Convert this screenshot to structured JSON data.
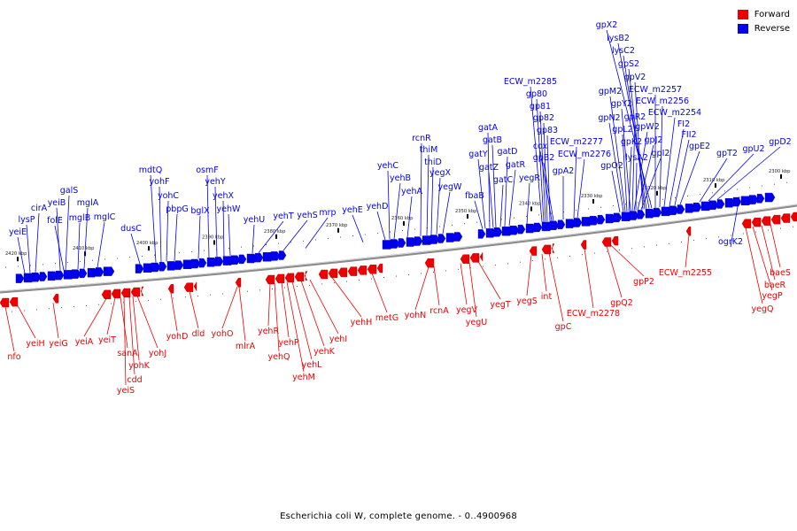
{
  "colors": {
    "forward": "#ee0000",
    "reverse": "#0000ee",
    "backbone": "#888888"
  },
  "legend": [
    {
      "label": "Forward",
      "color": "#ee0000"
    },
    {
      "label": "Reverse",
      "color": "#0000ee"
    }
  ],
  "caption": "Escherichia coli W, complete genome. - 0..4900968",
  "axis": {
    "unit": "kbp",
    "ticks": [
      2420,
      2410,
      2400,
      2390,
      2380,
      2370,
      2360,
      2350,
      2340,
      2330,
      2320,
      2310,
      2300
    ]
  },
  "reverse_genes": [
    "yeiE",
    "lysP",
    "cirA",
    "yeiB",
    "folE",
    "galS",
    "mglB",
    "mglA",
    "mglC",
    "dusC",
    "mdtQ",
    "yohF",
    "yohC",
    "pbpG",
    "bglX",
    "osmF",
    "yehY",
    "yehX",
    "yehW",
    "yehU",
    "yehT",
    "yehS",
    "mrp",
    "yehE",
    "yehD",
    "yehC",
    "yehB",
    "yehA",
    "rcnR",
    "thiM",
    "thiD",
    "yegX",
    "yegW",
    "fbaB",
    "gatY",
    "gatA",
    "gatZ",
    "gatB",
    "gatC",
    "gatD",
    "gatR",
    "yegR",
    "ECW_m2285",
    "gp80",
    "gp81",
    "gp82",
    "gp83",
    "cox",
    "gpB2",
    "ECW_m2277",
    "ECW_m2276",
    "gpA2",
    "gpO2",
    "gpN2",
    "gpM2",
    "gpL2",
    "gpK2",
    "gpY2",
    "gpR2",
    "gpW2",
    "lysA2",
    "gpJ2",
    "gpI2",
    "gpV2",
    "gpS2",
    "lysC2",
    "lysB2",
    "gpX2",
    "ECW_m2257",
    "ECW_m2256",
    "ECW_m2254",
    "FI2",
    "FII2",
    "gpE2",
    "gpT2",
    "gpU2",
    "gpD2",
    "ogrK2"
  ],
  "forward_genes": [
    "nfo",
    "yeiH",
    "yeiG",
    "yeiA",
    "yeiT",
    "sanA",
    "yeiS",
    "cdd",
    "yohK",
    "yohJ",
    "yohD",
    "dld",
    "yohO",
    "mlrA",
    "yehR",
    "yehQ",
    "yehP",
    "yehM",
    "yehL",
    "yehK",
    "yehI",
    "yehH",
    "metG",
    "yohN",
    "rcnA",
    "yegV",
    "yegU",
    "yegT",
    "yegS",
    "int",
    "gpC",
    "ECW_m2278",
    "gpQ2",
    "gpP2",
    "ECW_m2255",
    "yegQ",
    "yegP",
    "baeR",
    "baeS"
  ]
}
